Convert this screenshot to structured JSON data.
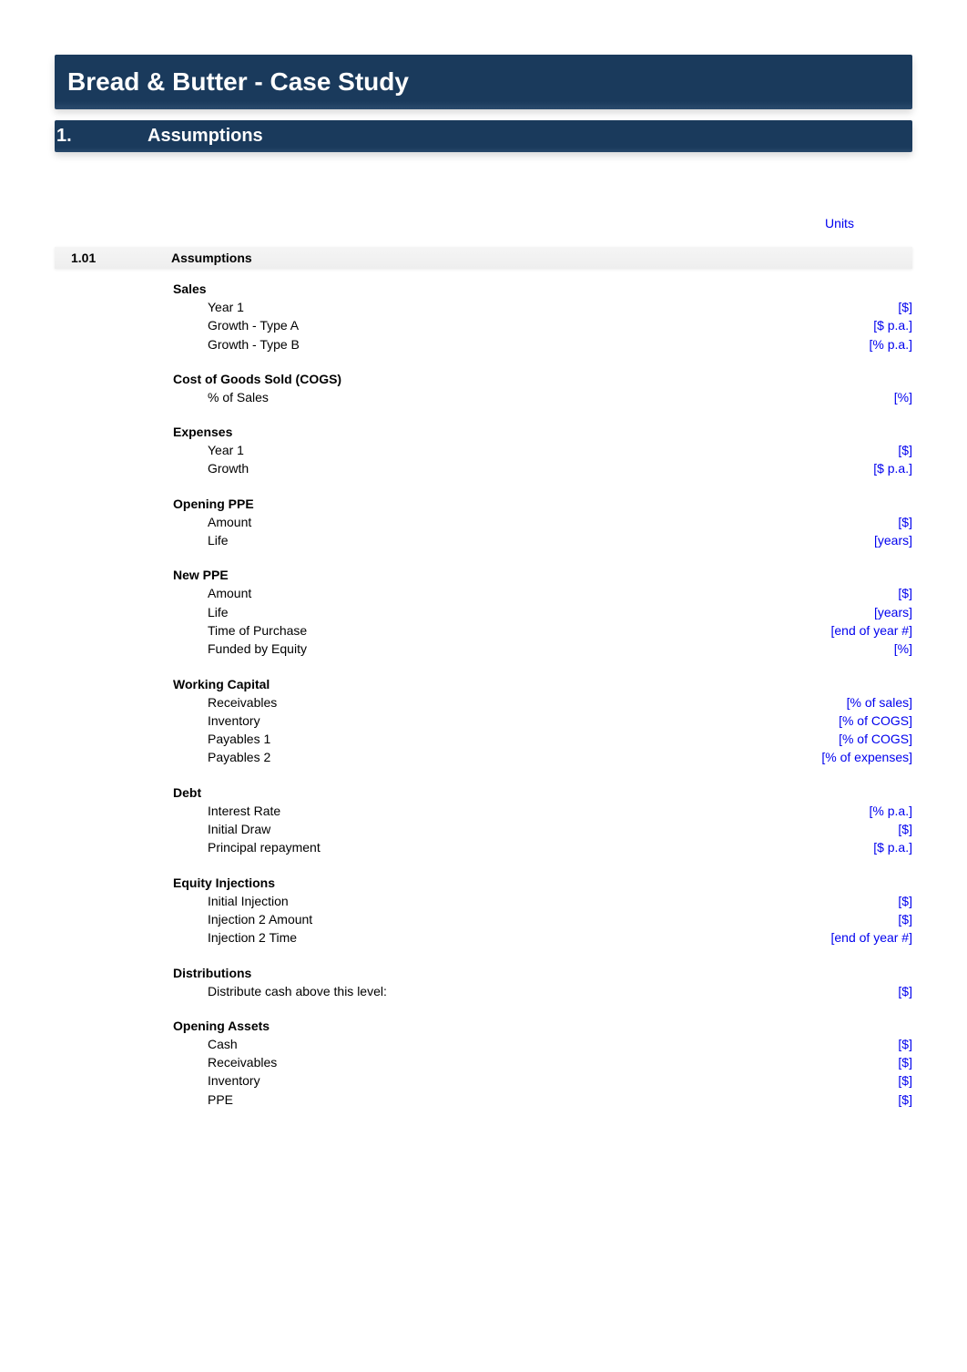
{
  "title": "Bread & Butter - Case Study",
  "section": {
    "number": "1.",
    "title": "Assumptions"
  },
  "units_header": "Units",
  "subsection": {
    "number": "1.01",
    "title": "Assumptions"
  },
  "groups": [
    {
      "header": "Sales",
      "rows": [
        {
          "label": "Year 1",
          "unit": "[$]"
        },
        {
          "label": "Growth - Type A",
          "unit": "[$ p.a.]"
        },
        {
          "label": "Growth - Type B",
          "unit": "[% p.a.]"
        }
      ]
    },
    {
      "header": "Cost of Goods Sold (COGS)",
      "rows": [
        {
          "label": "% of Sales",
          "unit": "[%]"
        }
      ]
    },
    {
      "header": "Expenses",
      "rows": [
        {
          "label": "Year 1",
          "unit": "[$]"
        },
        {
          "label": "Growth",
          "unit": "[$ p.a.]"
        }
      ]
    },
    {
      "header": "Opening PPE",
      "rows": [
        {
          "label": "Amount",
          "unit": "[$]"
        },
        {
          "label": "Life",
          "unit": "[years]"
        }
      ]
    },
    {
      "header": "New PPE",
      "rows": [
        {
          "label": "Amount",
          "unit": "[$]"
        },
        {
          "label": "Life",
          "unit": "[years]"
        },
        {
          "label": "Time of Purchase",
          "unit": "[end of year #]"
        },
        {
          "label": "Funded by Equity",
          "unit": "[%]"
        }
      ]
    },
    {
      "header": "Working Capital",
      "rows": [
        {
          "label": "Receivables",
          "unit": "[% of sales]"
        },
        {
          "label": "Inventory",
          "unit": "[% of COGS]"
        },
        {
          "label": "Payables 1",
          "unit": "[% of COGS]"
        },
        {
          "label": "Payables 2",
          "unit": "[% of expenses]"
        }
      ]
    },
    {
      "header": "Debt",
      "rows": [
        {
          "label": "Interest Rate",
          "unit": "[% p.a.]"
        },
        {
          "label": "Initial Draw",
          "unit": "[$]"
        },
        {
          "label": "Principal repayment",
          "unit": "[$ p.a.]"
        }
      ]
    },
    {
      "header": "Equity Injections",
      "rows": [
        {
          "label": "Initial Injection",
          "unit": "[$]"
        },
        {
          "label": "Injection 2 Amount",
          "unit": "[$]"
        },
        {
          "label": "Injection 2 Time",
          "unit": "[end of year #]"
        }
      ]
    },
    {
      "header": "Distributions",
      "rows": [
        {
          "label": "Distribute cash above this level:",
          "unit": "[$]"
        }
      ]
    },
    {
      "header": "Opening Assets",
      "rows": [
        {
          "label": "Cash",
          "unit": "[$]"
        },
        {
          "label": "Receivables",
          "unit": "[$]"
        },
        {
          "label": "Inventory",
          "unit": "[$]"
        },
        {
          "label": "PPE",
          "unit": "[$]"
        }
      ]
    }
  ]
}
